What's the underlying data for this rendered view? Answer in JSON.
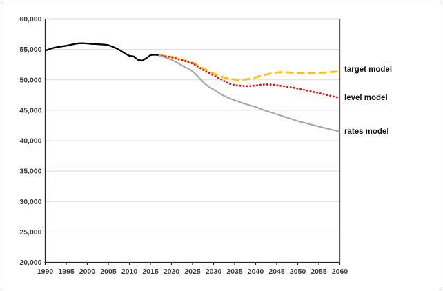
{
  "chart_data": {
    "type": "line",
    "title": "",
    "xlabel": "",
    "ylabel": "",
    "grid": "horizontal",
    "gridline_color": "#d9d9d9",
    "border_color": "#595959",
    "axis_color": "#262626",
    "legend_position": "right-outside",
    "x_axis": {
      "min": 1990,
      "max": 2060,
      "tick_step": 5,
      "ticks": [
        1990,
        1995,
        2000,
        2005,
        2010,
        2015,
        2020,
        2025,
        2030,
        2035,
        2040,
        2045,
        2050,
        2055,
        2060
      ]
    },
    "y_axis": {
      "min": 20000,
      "max": 60000,
      "tick_step": 5000,
      "ticks": [
        60000,
        55000,
        50000,
        45000,
        40000,
        35000,
        30000,
        25000,
        20000
      ],
      "tick_labels": [
        "60,000",
        "55,000",
        "50,000",
        "45,000",
        "40,000",
        "35,000",
        "30,000",
        "25,000",
        "20,000"
      ]
    },
    "series": [
      {
        "id": "historical",
        "label": "",
        "color": "#000000",
        "style": "solid",
        "points": [
          [
            1990,
            54800
          ],
          [
            1991,
            55050
          ],
          [
            1992,
            55250
          ],
          [
            1993,
            55400
          ],
          [
            1994,
            55500
          ],
          [
            1995,
            55600
          ],
          [
            1996,
            55750
          ],
          [
            1997,
            55900
          ],
          [
            1998,
            56000
          ],
          [
            1999,
            56020
          ],
          [
            2000,
            55970
          ],
          [
            2001,
            55900
          ],
          [
            2002,
            55870
          ],
          [
            2003,
            55830
          ],
          [
            2004,
            55780
          ],
          [
            2005,
            55700
          ],
          [
            2006,
            55450
          ],
          [
            2007,
            55150
          ],
          [
            2008,
            54750
          ],
          [
            2009,
            54300
          ],
          [
            2010,
            53950
          ],
          [
            2011,
            53850
          ],
          [
            2012,
            53300
          ],
          [
            2013,
            53150
          ],
          [
            2014,
            53550
          ],
          [
            2015,
            54050
          ],
          [
            2016,
            54120
          ],
          [
            2017,
            54050
          ]
        ]
      },
      {
        "id": "target",
        "label": "target model",
        "color": "#FFC000",
        "style": "dashed",
        "points": [
          [
            2017,
            54050
          ],
          [
            2018,
            53950
          ],
          [
            2019,
            53880
          ],
          [
            2020,
            53800
          ],
          [
            2021,
            53600
          ],
          [
            2022,
            53400
          ],
          [
            2023,
            53200
          ],
          [
            2024,
            53000
          ],
          [
            2025,
            52800
          ],
          [
            2026,
            52450
          ],
          [
            2027,
            52050
          ],
          [
            2028,
            51700
          ],
          [
            2029,
            51350
          ],
          [
            2030,
            51050
          ],
          [
            2031,
            50750
          ],
          [
            2032,
            50500
          ],
          [
            2033,
            50300
          ],
          [
            2034,
            50150
          ],
          [
            2035,
            50050
          ],
          [
            2036,
            50000
          ],
          [
            2037,
            50020
          ],
          [
            2038,
            50100
          ],
          [
            2039,
            50250
          ],
          [
            2040,
            50400
          ],
          [
            2041,
            50600
          ],
          [
            2042,
            50800
          ],
          [
            2043,
            50950
          ],
          [
            2044,
            51100
          ],
          [
            2045,
            51200
          ],
          [
            2046,
            51250
          ],
          [
            2047,
            51250
          ],
          [
            2048,
            51200
          ],
          [
            2049,
            51150
          ],
          [
            2050,
            51100
          ],
          [
            2051,
            51080
          ],
          [
            2052,
            51080
          ],
          [
            2053,
            51100
          ],
          [
            2054,
            51120
          ],
          [
            2055,
            51150
          ],
          [
            2056,
            51180
          ],
          [
            2057,
            51230
          ],
          [
            2058,
            51280
          ],
          [
            2059,
            51340
          ],
          [
            2060,
            51400
          ]
        ]
      },
      {
        "id": "level",
        "label": "level model",
        "color": "#FF0000",
        "style": "dotted",
        "points": [
          [
            2017,
            54050
          ],
          [
            2018,
            53920
          ],
          [
            2019,
            53820
          ],
          [
            2020,
            53720
          ],
          [
            2021,
            53520
          ],
          [
            2022,
            53320
          ],
          [
            2023,
            53120
          ],
          [
            2024,
            52920
          ],
          [
            2025,
            52700
          ],
          [
            2026,
            52300
          ],
          [
            2027,
            51850
          ],
          [
            2028,
            51400
          ],
          [
            2029,
            51050
          ],
          [
            2030,
            50750
          ],
          [
            2031,
            50380
          ],
          [
            2032,
            50000
          ],
          [
            2033,
            49600
          ],
          [
            2034,
            49300
          ],
          [
            2035,
            49150
          ],
          [
            2036,
            49070
          ],
          [
            2037,
            49000
          ],
          [
            2038,
            48960
          ],
          [
            2039,
            49000
          ],
          [
            2040,
            49080
          ],
          [
            2041,
            49180
          ],
          [
            2042,
            49240
          ],
          [
            2043,
            49250
          ],
          [
            2044,
            49200
          ],
          [
            2045,
            49120
          ],
          [
            2046,
            49020
          ],
          [
            2047,
            48920
          ],
          [
            2048,
            48820
          ],
          [
            2049,
            48700
          ],
          [
            2050,
            48570
          ],
          [
            2051,
            48430
          ],
          [
            2052,
            48280
          ],
          [
            2053,
            48130
          ],
          [
            2054,
            47970
          ],
          [
            2055,
            47820
          ],
          [
            2056,
            47660
          ],
          [
            2057,
            47500
          ],
          [
            2058,
            47340
          ],
          [
            2059,
            47170
          ],
          [
            2060,
            47000
          ]
        ]
      },
      {
        "id": "rates",
        "label": "rates model",
        "color": "#A6A6A6",
        "style": "solid",
        "points": [
          [
            2017,
            54050
          ],
          [
            2018,
            53800
          ],
          [
            2019,
            53550
          ],
          [
            2020,
            53300
          ],
          [
            2021,
            52950
          ],
          [
            2022,
            52550
          ],
          [
            2023,
            52150
          ],
          [
            2024,
            51850
          ],
          [
            2025,
            51400
          ],
          [
            2026,
            50750
          ],
          [
            2027,
            50000
          ],
          [
            2028,
            49300
          ],
          [
            2029,
            48820
          ],
          [
            2030,
            48420
          ],
          [
            2031,
            47950
          ],
          [
            2032,
            47550
          ],
          [
            2033,
            47200
          ],
          [
            2034,
            46900
          ],
          [
            2035,
            46650
          ],
          [
            2036,
            46400
          ],
          [
            2037,
            46150
          ],
          [
            2038,
            45950
          ],
          [
            2039,
            45750
          ],
          [
            2040,
            45550
          ],
          [
            2041,
            45280
          ],
          [
            2042,
            45000
          ],
          [
            2043,
            44780
          ],
          [
            2044,
            44560
          ],
          [
            2045,
            44340
          ],
          [
            2046,
            44120
          ],
          [
            2047,
            43900
          ],
          [
            2048,
            43680
          ],
          [
            2049,
            43450
          ],
          [
            2050,
            43230
          ],
          [
            2051,
            43050
          ],
          [
            2052,
            42870
          ],
          [
            2053,
            42690
          ],
          [
            2054,
            42510
          ],
          [
            2055,
            42330
          ],
          [
            2056,
            42150
          ],
          [
            2057,
            41980
          ],
          [
            2058,
            41820
          ],
          [
            2059,
            41660
          ],
          [
            2060,
            41500
          ]
        ]
      }
    ]
  }
}
